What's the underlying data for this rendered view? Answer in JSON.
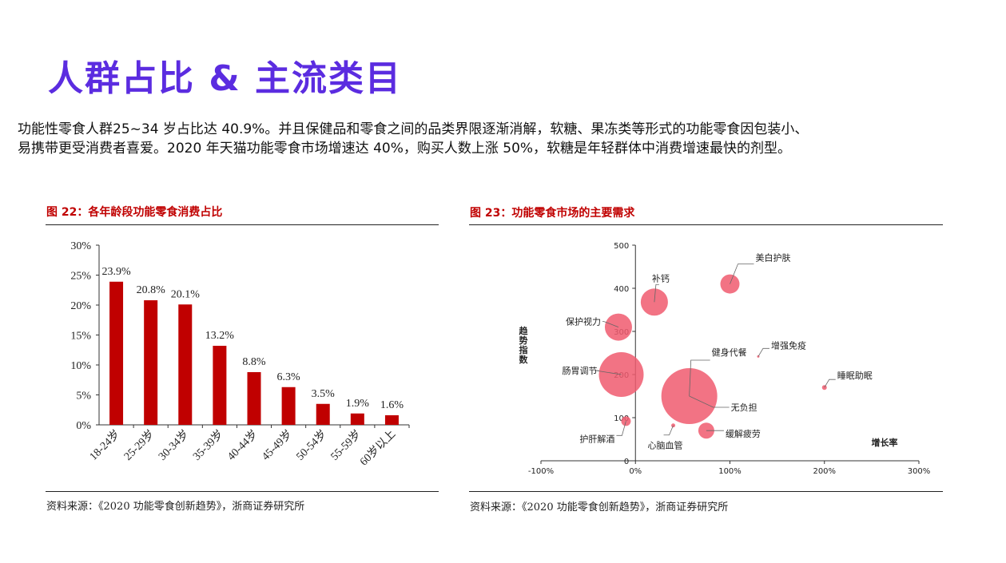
{
  "page": {
    "title": "人群占比 & 主流类目",
    "intro_line1": "功能性零食人群25~34 岁占比达 40.9%。并且保健品和零食之间的品类界限逐渐消解，软糖、果冻类等形式的功能零食因包装小、",
    "intro_line2": "易携带更受消费者喜爱。2020 年天猫功能零食市场增速达 40%，购买人数上涨 50%，软糖是年轻群体中消费增速最快的剂型。"
  },
  "figures": {
    "fig22_title": "图 22：各年龄段功能零食消费占比",
    "fig22_source": "资料来源：《2020 功能零食创新趋势》，浙商证券研究所",
    "fig23_title": "图 23：功能零食市场的主要需求",
    "fig23_source": "资料来源：《2020 功能零食创新趋势》，浙商证券研究所"
  },
  "chart_data": [
    {
      "type": "bar",
      "categories": [
        "18-24岁",
        "25-29岁",
        "30-34岁",
        "35-39岁",
        "40-44岁",
        "45-49岁",
        "50-54岁",
        "55-59岁",
        "60岁以上"
      ],
      "values": [
        23.9,
        20.8,
        20.1,
        13.2,
        8.8,
        6.3,
        3.5,
        1.9,
        1.6
      ],
      "data_labels": [
        "23.9%",
        "20.8%",
        "20.1%",
        "13.2%",
        "8.8%",
        "6.3%",
        "3.5%",
        "1.9%",
        "1.6%"
      ],
      "yticks": [
        0,
        5,
        10,
        15,
        20,
        25,
        30
      ],
      "ytick_labels": [
        "0%",
        "5%",
        "10%",
        "15%",
        "20%",
        "25%",
        "30%"
      ],
      "ylim": [
        0,
        30
      ],
      "bar_color": "#c00000",
      "grid": false
    },
    {
      "type": "scatter",
      "xlabel": "增长率",
      "ylabel": "趋势指数",
      "xlim": [
        -100,
        300
      ],
      "ylim": [
        0,
        500
      ],
      "xticks": [
        -100,
        0,
        100,
        200,
        300
      ],
      "xtick_labels": [
        "-100%",
        "0%",
        "100%",
        "200%",
        "300%"
      ],
      "yticks": [
        0,
        100,
        200,
        300,
        400,
        500
      ],
      "ytick_labels": [
        "0",
        "100",
        "200",
        "300",
        "400",
        "500"
      ],
      "bubble_color": "#f05a6e",
      "grid": false,
      "points": [
        {
          "label": "美白护肤",
          "x": 100,
          "y": 410,
          "size": 12
        },
        {
          "label": "补钙",
          "x": 20,
          "y": 368,
          "size": 17
        },
        {
          "label": "保护视力",
          "x": -18,
          "y": 310,
          "size": 17
        },
        {
          "label": "增强免疫",
          "x": 130,
          "y": 242,
          "size": 1.5
        },
        {
          "label": "健身代餐",
          "x": 57,
          "y": 150,
          "size": 35
        },
        {
          "label": "无负担",
          "x": 57,
          "y": 150,
          "size": 0
        },
        {
          "label": "肠胃调节",
          "x": -15,
          "y": 200,
          "size": 28
        },
        {
          "label": "睡眠助眠",
          "x": 200,
          "y": 170,
          "size": 3
        },
        {
          "label": "护肝解酒",
          "x": -10,
          "y": 92,
          "size": 6
        },
        {
          "label": "心脑血管",
          "x": 40,
          "y": 82,
          "size": 2.5
        },
        {
          "label": "缓解疲劳",
          "x": 75,
          "y": 70,
          "size": 10
        }
      ]
    }
  ]
}
